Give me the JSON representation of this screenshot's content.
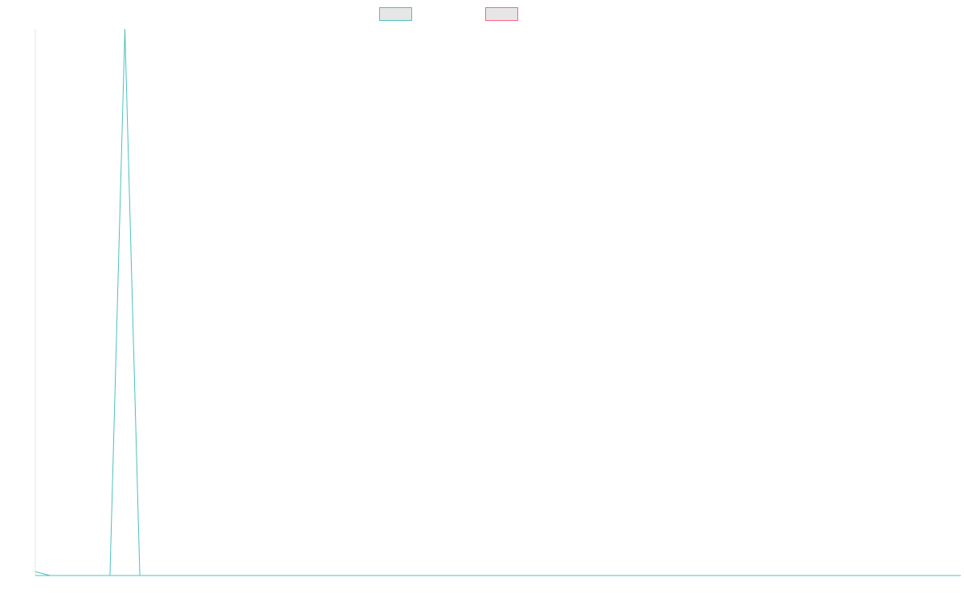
{
  "chart_data": {
    "type": "line",
    "title": "",
    "xlabel": "",
    "ylabel": "",
    "x_count": 63,
    "ylim": [
      0,
      100
    ],
    "grid": false,
    "legend_position": "top-center",
    "series": [
      {
        "name": "",
        "color": "#4bc0c0",
        "fill": "#e6e6e6",
        "values": [
          0.7,
          0,
          0,
          0,
          0,
          0,
          100,
          0,
          0,
          0,
          0,
          0,
          0,
          0,
          0,
          0,
          0,
          0,
          0,
          0,
          0,
          0,
          0,
          0,
          0,
          0,
          0,
          0,
          0,
          0,
          0,
          0,
          0,
          0,
          0,
          0,
          0,
          0,
          0,
          0,
          0,
          0,
          0,
          0,
          0,
          0,
          0,
          0,
          0,
          0,
          0,
          0,
          0,
          0,
          0,
          0,
          0,
          0,
          0,
          0,
          0,
          0,
          0
        ]
      },
      {
        "name": "",
        "color": "#ff6384",
        "fill": "#e6e6e6",
        "values": [
          0,
          0,
          0,
          0,
          0,
          0,
          0,
          0,
          0,
          0,
          0,
          0,
          0,
          0,
          0,
          0,
          0,
          0,
          0,
          0,
          0,
          0,
          0,
          0,
          0,
          0,
          0,
          0,
          0,
          0,
          0,
          0,
          0,
          0,
          0,
          0,
          0,
          0,
          0,
          0,
          0,
          0,
          0,
          0,
          0,
          0,
          0,
          0,
          0,
          0,
          0,
          0,
          0,
          0,
          0,
          0,
          0,
          0,
          0,
          0,
          0,
          0,
          0
        ]
      }
    ]
  }
}
